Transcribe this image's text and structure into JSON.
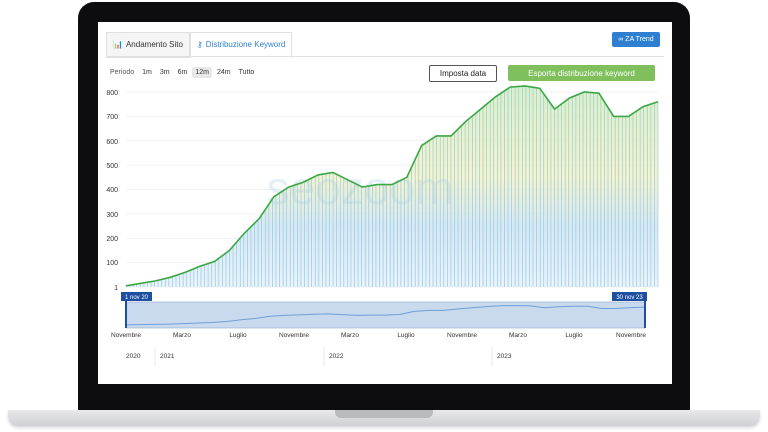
{
  "tabs": [
    {
      "label": "Andamento Sito",
      "icon": "chart-icon"
    },
    {
      "label": "Distribuzione Keyword",
      "icon": "key-icon"
    }
  ],
  "za_button": {
    "label": "ZA Trend",
    "icon": "link-icon"
  },
  "period": {
    "label": "Periodo",
    "options": [
      "1m",
      "3m",
      "6m",
      "12m",
      "24m",
      "Tutto"
    ],
    "selected": "12m"
  },
  "buttons": {
    "imposta": "Imposta data",
    "export": "Esporta distribuzione keyword"
  },
  "watermark": "seozoom",
  "navigator": {
    "start_label": "1 nov 20",
    "end_label": "30 nov 23",
    "month_ticks": [
      "Novembre",
      "Marzo",
      "Luglio",
      "Novembre",
      "Marzo",
      "Luglio",
      "Novembre",
      "Marzo",
      "Luglio",
      "Novembre"
    ],
    "year_ticks": [
      "2020",
      "2021",
      "2022",
      "2023"
    ]
  },
  "colors": {
    "line": "#3aa845",
    "accent": "#2f7fd1",
    "export": "#7fc05c",
    "nav_handle": "#1f4fa0"
  },
  "chart_data": {
    "type": "area",
    "y_ticks": [
      "1",
      "100",
      "200",
      "300",
      "400",
      "500",
      "600",
      "700",
      "800"
    ],
    "ylim": [
      0,
      850
    ],
    "x": [
      "Nov 2020",
      "Dec 2020",
      "Jan 2021",
      "Feb 2021",
      "Mar 2021",
      "Apr 2021",
      "May 2021",
      "Jun 2021",
      "Jul 2021",
      "Aug 2021",
      "Sep 2021",
      "Oct 2021",
      "Nov 2021",
      "Dec 2021",
      "Jan 2022",
      "Feb 2022",
      "Mar 2022",
      "Apr 2022",
      "May 2022",
      "Jun 2022",
      "Jul 2022",
      "Aug 2022",
      "Sep 2022",
      "Oct 2022",
      "Nov 2022",
      "Dec 2022",
      "Jan 2023",
      "Feb 2023",
      "Mar 2023",
      "Apr 2023",
      "May 2023",
      "Jun 2023",
      "Jul 2023",
      "Aug 2023",
      "Sep 2023",
      "Oct 2023",
      "Nov 2023"
    ],
    "series": [
      {
        "values": [
          5,
          15,
          25,
          40,
          60,
          85,
          105,
          150,
          220,
          280,
          370,
          410,
          430,
          460,
          470,
          440,
          410,
          420,
          420,
          450,
          580,
          620,
          620,
          680,
          730,
          780,
          820,
          825,
          815,
          730,
          775,
          800,
          795,
          700,
          700,
          740,
          760
        ]
      }
    ]
  }
}
